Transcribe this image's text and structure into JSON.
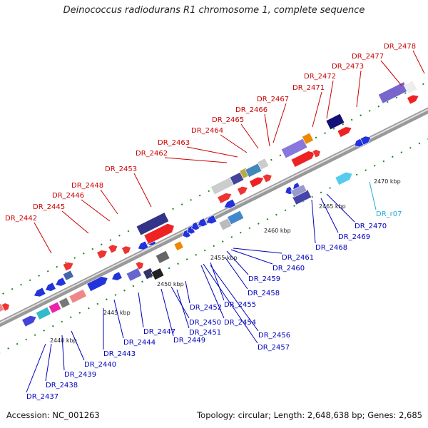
{
  "title": "Deinococcus radiodurans R1 chromosome 1, complete sequence",
  "footer": {
    "accession": "Accession: NC_001263",
    "summary": "Topology: circular; Length: 2,648,638 bp; Genes: 2,685"
  },
  "colors": {
    "top_label": "#cc0000",
    "bottom_label": "#0000bb",
    "rna_label": "#22aadd",
    "backbone": "#888888"
  },
  "kbp_ticks": [
    "2440 kbp",
    "2445 kbp",
    "2450 kbp",
    "2455 kbp",
    "2460 kbp",
    "2465 kbp",
    "2470 kbp"
  ],
  "top_genes": [
    "DR_2442",
    "DR_2445",
    "DR_2446",
    "DR_2448",
    "DR_2453",
    "DR_2462",
    "DR_2463",
    "DR_2464",
    "DR_2465",
    "DR_2466",
    "DR_2467",
    "DR_2471",
    "DR_2472",
    "DR_2473",
    "DR_2477",
    "DR_2478"
  ],
  "bottom_genes": [
    "DR_2437",
    "DR_2438",
    "DR_2439",
    "DR_2440",
    "DR_2443",
    "DR_2444",
    "DR_2447",
    "DR_2449",
    "DR_2450",
    "DR_2451",
    "DR_2452",
    "DR_2454",
    "DR_2455",
    "DR_2456",
    "DR_2457",
    "DR_2458",
    "DR_2459",
    "DR_2460",
    "DR_2461",
    "DR_2468",
    "DR_2469",
    "DR_2470",
    "DR_r07"
  ]
}
